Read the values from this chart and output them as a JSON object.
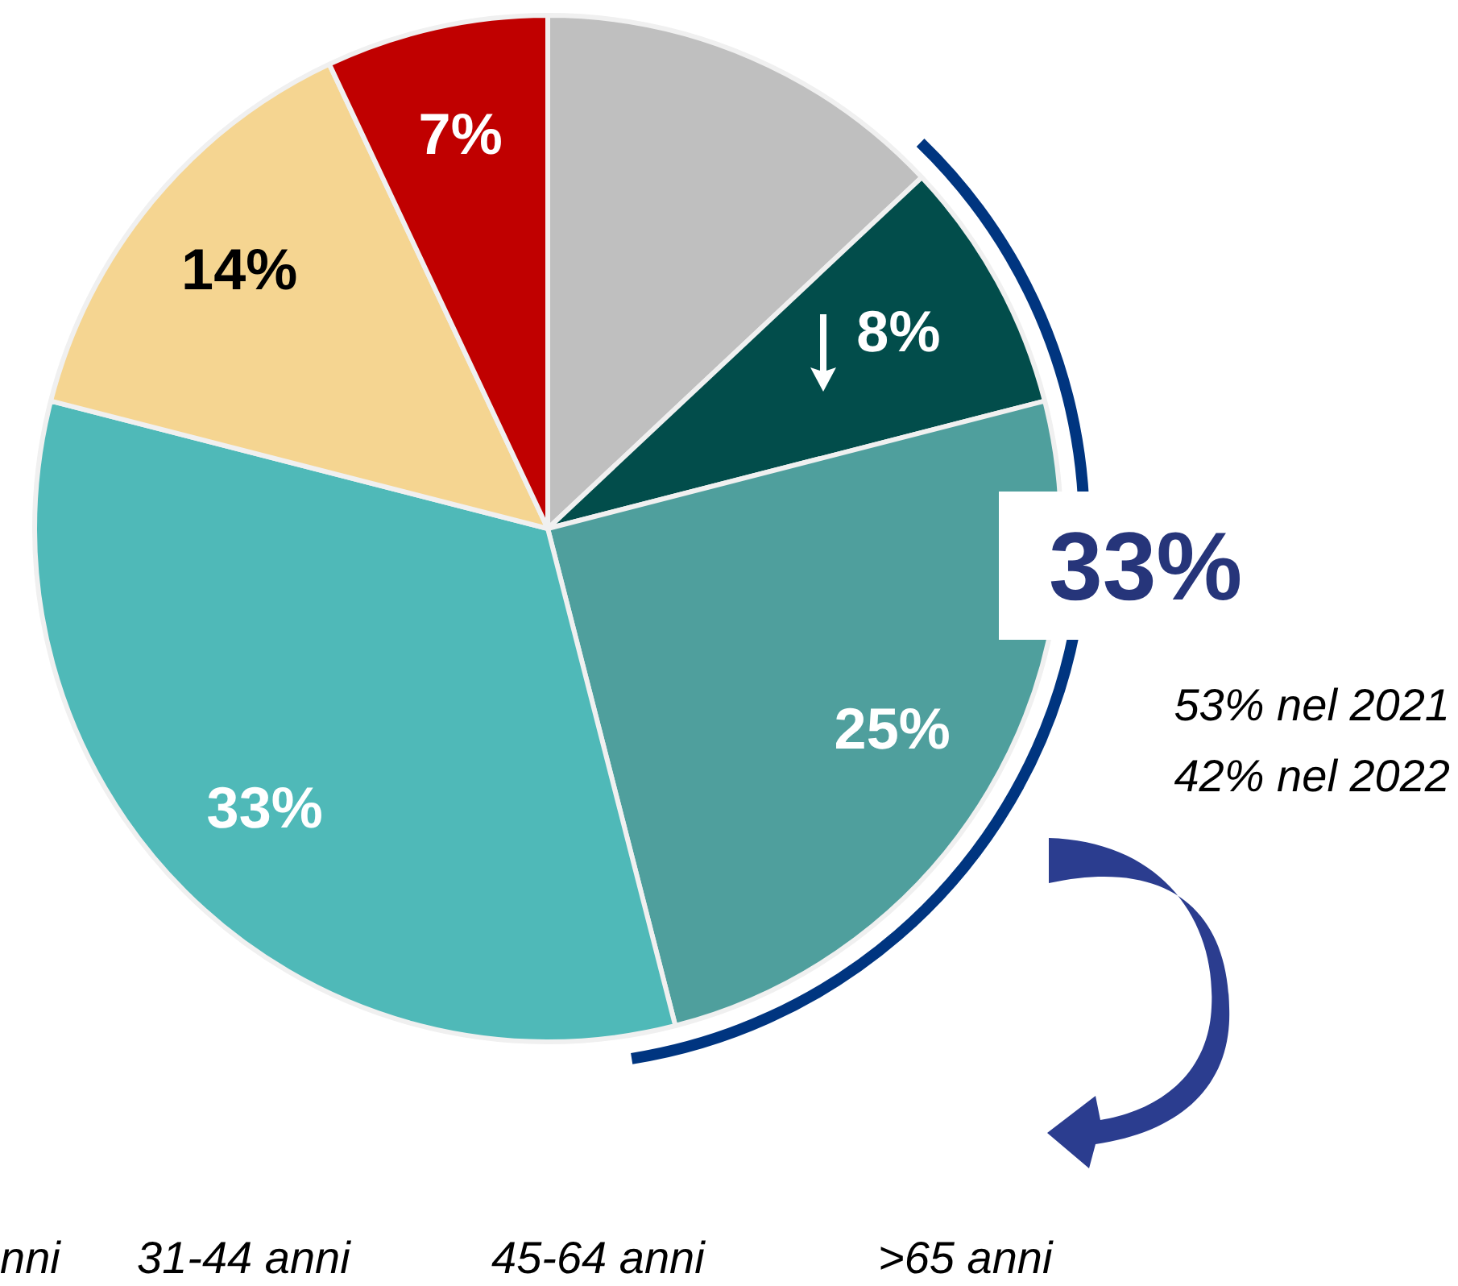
{
  "chart_data": {
    "type": "pie",
    "categories": [
      null,
      null,
      null,
      null,
      null,
      null
    ],
    "values": [
      13,
      8,
      25,
      33,
      14,
      7
    ],
    "colors": [
      "#bfbfbf",
      "#024d4b",
      "#4f9f9d",
      "#4fb9b8",
      "#f5d591",
      "#c00000"
    ],
    "value_labels": [
      null,
      "8%",
      "25%",
      "33%",
      "14%",
      "7%"
    ],
    "legend": false,
    "annotations": [
      "33%",
      "53% nel 2021",
      "42% nel 2022",
      "nni",
      "31-44 anni",
      "45-64 anni",
      ">65 anni"
    ]
  }
}
